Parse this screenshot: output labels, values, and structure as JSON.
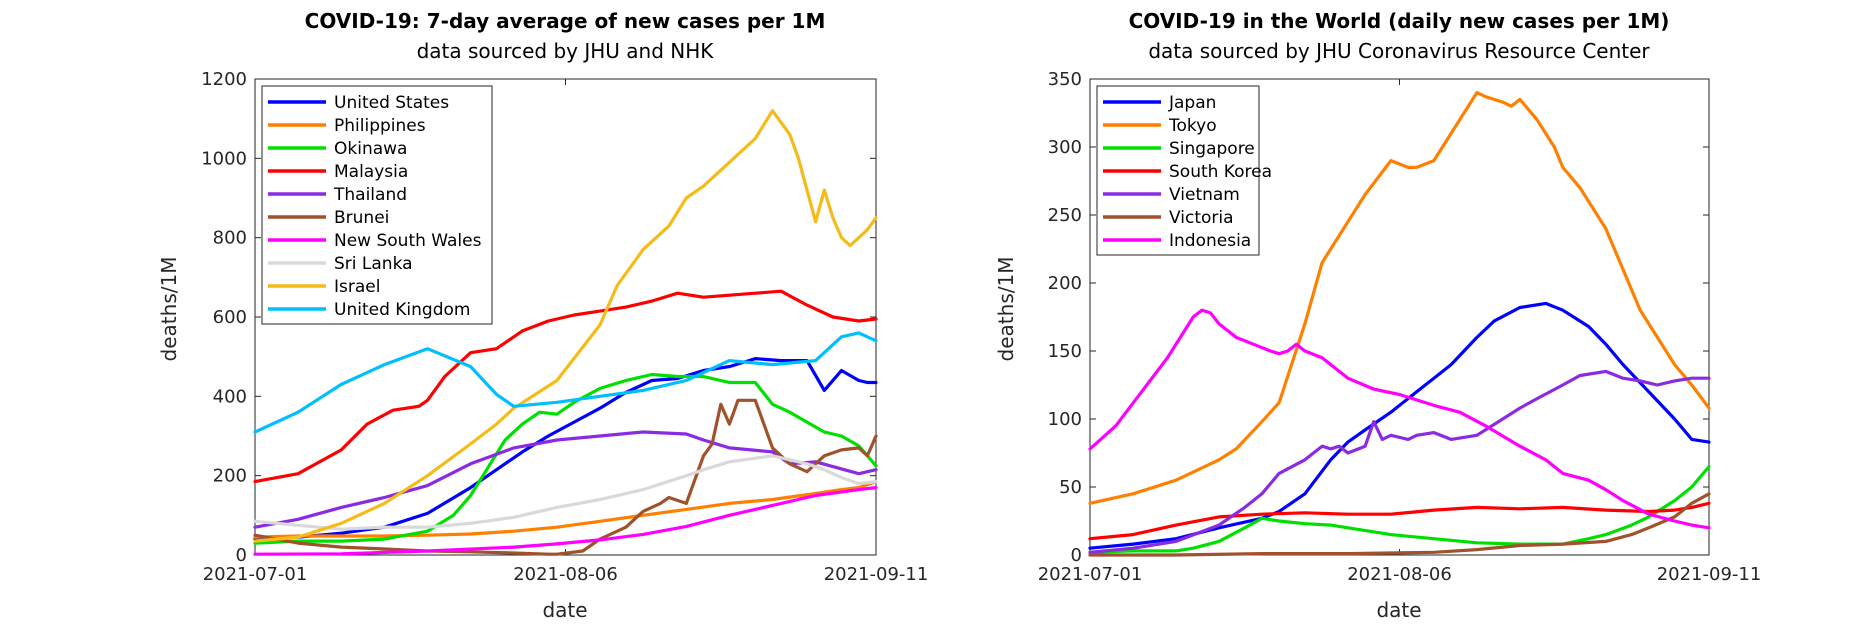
{
  "chart_data": [
    {
      "type": "line",
      "title": "COVID-19: 7-day average of new cases per 1M",
      "subtitle": "data sourced by JHU and NHK",
      "xlabel": "date",
      "ylabel": "deaths/1M",
      "x_range": [
        0,
        72
      ],
      "ylim": [
        0,
        1200
      ],
      "yticks": [
        0,
        200,
        400,
        600,
        800,
        1000,
        1200
      ],
      "xticks": [
        0,
        36,
        72
      ],
      "xtick_labels": [
        "2021-07-01",
        "2021-08-06",
        "2021-09-11"
      ],
      "legend_position": "top-left",
      "series": [
        {
          "name": "United States",
          "color": "#0000ff",
          "x": [
            0,
            5,
            10,
            15,
            20,
            25,
            28,
            31,
            34,
            37,
            40,
            43,
            46,
            49,
            52,
            55,
            58,
            61,
            64,
            66,
            68,
            70,
            71,
            72
          ],
          "y": [
            40,
            45,
            55,
            70,
            105,
            170,
            215,
            260,
            300,
            335,
            370,
            410,
            440,
            445,
            465,
            475,
            495,
            490,
            490,
            415,
            465,
            440,
            435,
            435
          ]
        },
        {
          "name": "Philippines",
          "color": "#ff8000",
          "x": [
            0,
            5,
            10,
            15,
            20,
            25,
            30,
            35,
            40,
            45,
            50,
            55,
            60,
            65,
            68,
            70,
            72
          ],
          "y": [
            45,
            48,
            48,
            48,
            50,
            53,
            60,
            70,
            85,
            100,
            115,
            130,
            140,
            155,
            165,
            170,
            185
          ]
        },
        {
          "name": "Okinawa",
          "color": "#00e000",
          "x": [
            0,
            5,
            10,
            15,
            20,
            23,
            25,
            27,
            29,
            31,
            33,
            35,
            37,
            40,
            43,
            46,
            49,
            52,
            55,
            58,
            60,
            62,
            64,
            66,
            68,
            70,
            71,
            72
          ],
          "y": [
            30,
            35,
            35,
            40,
            60,
            100,
            150,
            220,
            290,
            330,
            360,
            355,
            385,
            420,
            440,
            455,
            450,
            450,
            435,
            435,
            380,
            360,
            335,
            310,
            300,
            275,
            250,
            225
          ]
        },
        {
          "name": "Malaysia",
          "color": "#ff0000",
          "x": [
            0,
            5,
            10,
            13,
            16,
            19,
            20,
            22,
            25,
            28,
            31,
            34,
            37,
            40,
            43,
            46,
            49,
            52,
            55,
            58,
            61,
            64,
            67,
            70,
            72
          ],
          "y": [
            185,
            205,
            265,
            330,
            365,
            375,
            390,
            450,
            510,
            520,
            565,
            590,
            605,
            615,
            625,
            640,
            660,
            650,
            655,
            660,
            665,
            630,
            600,
            590,
            595
          ]
        },
        {
          "name": "Thailand",
          "color": "#8a2be2",
          "x": [
            0,
            5,
            10,
            15,
            20,
            25,
            30,
            35,
            40,
            45,
            50,
            52,
            55,
            60,
            62,
            65,
            70,
            72
          ],
          "y": [
            70,
            90,
            120,
            145,
            175,
            230,
            270,
            290,
            300,
            310,
            305,
            290,
            270,
            260,
            230,
            235,
            205,
            215
          ]
        },
        {
          "name": "Brunei",
          "color": "#a0522d",
          "x": [
            0,
            5,
            10,
            15,
            20,
            25,
            30,
            34,
            35,
            38,
            40,
            43,
            45,
            47,
            48,
            50,
            52,
            53,
            54,
            55,
            56,
            58,
            60,
            62,
            64,
            66,
            68,
            70,
            71,
            72
          ],
          "y": [
            50,
            30,
            20,
            15,
            10,
            8,
            5,
            2,
            2,
            10,
            40,
            70,
            110,
            130,
            145,
            130,
            250,
            280,
            380,
            330,
            390,
            390,
            270,
            230,
            210,
            250,
            265,
            270,
            250,
            300
          ]
        },
        {
          "name": "New South Wales",
          "color": "#ff00ff",
          "x": [
            0,
            10,
            20,
            30,
            35,
            40,
            45,
            50,
            55,
            60,
            65,
            70,
            72
          ],
          "y": [
            2,
            3,
            10,
            20,
            28,
            38,
            52,
            72,
            100,
            125,
            150,
            165,
            170
          ]
        },
        {
          "name": "Sri Lanka",
          "color": "#d9d9d9",
          "x": [
            0,
            5,
            10,
            15,
            20,
            25,
            30,
            35,
            40,
            45,
            50,
            52,
            55,
            60,
            62,
            64,
            66,
            68,
            70,
            72
          ],
          "y": [
            85,
            75,
            65,
            70,
            70,
            80,
            95,
            120,
            140,
            165,
            200,
            215,
            235,
            250,
            240,
            230,
            215,
            195,
            180,
            185
          ]
        },
        {
          "name": "Israel",
          "color": "#f5bb19",
          "x": [
            0,
            5,
            10,
            15,
            20,
            25,
            28,
            30,
            35,
            40,
            42,
            45,
            48,
            50,
            52,
            55,
            58,
            60,
            62,
            63,
            64,
            65,
            66,
            67,
            68,
            69,
            70,
            71,
            72
          ],
          "y": [
            35,
            45,
            80,
            130,
            200,
            280,
            330,
            370,
            440,
            580,
            680,
            770,
            830,
            900,
            930,
            990,
            1050,
            1120,
            1060,
            1000,
            920,
            840,
            920,
            850,
            800,
            780,
            800,
            820,
            850
          ]
        },
        {
          "name": "United Kingdom",
          "color": "#00bfff",
          "x": [
            0,
            5,
            10,
            15,
            20,
            25,
            28,
            30,
            35,
            40,
            45,
            50,
            55,
            60,
            65,
            68,
            70,
            72
          ],
          "y": [
            310,
            360,
            430,
            480,
            520,
            475,
            405,
            375,
            385,
            400,
            415,
            440,
            490,
            480,
            490,
            550,
            560,
            540
          ]
        }
      ]
    },
    {
      "type": "line",
      "title": "COVID-19 in the World (daily new cases per 1M)",
      "subtitle": "data sourced by JHU Coronavirus Resource Center",
      "xlabel": "date",
      "ylabel": "deaths/1M",
      "x_range": [
        0,
        72
      ],
      "ylim": [
        0,
        350
      ],
      "yticks": [
        0,
        50,
        100,
        150,
        200,
        250,
        300,
        350
      ],
      "xticks": [
        0,
        36,
        72
      ],
      "xtick_labels": [
        "2021-07-01",
        "2021-08-06",
        "2021-09-11"
      ],
      "legend_position": "top-left",
      "series": [
        {
          "name": "Japan",
          "color": "#0000ff",
          "x": [
            0,
            5,
            10,
            15,
            20,
            22,
            25,
            28,
            30,
            32,
            35,
            38,
            40,
            42,
            45,
            47,
            50,
            53,
            55,
            58,
            60,
            62,
            65,
            68,
            70,
            72
          ],
          "y": [
            5,
            8,
            12,
            20,
            27,
            32,
            45,
            70,
            83,
            92,
            105,
            120,
            130,
            140,
            160,
            172,
            182,
            185,
            180,
            168,
            155,
            140,
            120,
            100,
            85,
            83
          ]
        },
        {
          "name": "Tokyo",
          "color": "#ff8000",
          "x": [
            0,
            5,
            10,
            15,
            17,
            20,
            22,
            25,
            27,
            28,
            30,
            32,
            35,
            37,
            38,
            40,
            42,
            44,
            45,
            46,
            47,
            48,
            49,
            50,
            52,
            54,
            55,
            57,
            60,
            62,
            64,
            66,
            68,
            70,
            72
          ],
          "y": [
            38,
            45,
            55,
            70,
            78,
            98,
            112,
            170,
            215,
            225,
            245,
            265,
            290,
            285,
            285,
            290,
            310,
            330,
            340,
            337,
            335,
            333,
            330,
            335,
            320,
            300,
            285,
            270,
            240,
            210,
            180,
            160,
            140,
            125,
            108
          ]
        },
        {
          "name": "Singapore",
          "color": "#00e000",
          "x": [
            0,
            5,
            10,
            12,
            15,
            18,
            20,
            22,
            25,
            28,
            30,
            35,
            40,
            45,
            50,
            55,
            58,
            60,
            63,
            65,
            68,
            70,
            72
          ],
          "y": [
            2,
            3,
            3,
            5,
            10,
            20,
            27,
            25,
            23,
            22,
            20,
            15,
            12,
            9,
            8,
            8,
            12,
            15,
            22,
            28,
            40,
            50,
            65
          ]
        },
        {
          "name": "South Korea",
          "color": "#ff0000",
          "x": [
            0,
            5,
            10,
            15,
            20,
            25,
            30,
            35,
            40,
            45,
            50,
            55,
            60,
            65,
            68,
            70,
            72
          ],
          "y": [
            12,
            15,
            22,
            28,
            30,
            31,
            30,
            30,
            33,
            35,
            34,
            35,
            33,
            32,
            33,
            35,
            38
          ]
        },
        {
          "name": "Vietnam",
          "color": "#8a2be2",
          "x": [
            0,
            5,
            10,
            15,
            18,
            20,
            22,
            25,
            27,
            28,
            29,
            30,
            32,
            33,
            34,
            35,
            37,
            38,
            40,
            42,
            45,
            48,
            50,
            52,
            55,
            57,
            60,
            62,
            64,
            66,
            68,
            70,
            72
          ],
          "y": [
            2,
            5,
            10,
            22,
            35,
            45,
            60,
            70,
            80,
            78,
            80,
            75,
            80,
            98,
            85,
            88,
            85,
            88,
            90,
            85,
            88,
            100,
            108,
            115,
            125,
            132,
            135,
            130,
            128,
            125,
            128,
            130,
            130
          ]
        },
        {
          "name": "Victoria",
          "color": "#a0522d",
          "x": [
            0,
            10,
            20,
            30,
            40,
            45,
            50,
            55,
            60,
            63,
            65,
            68,
            70,
            72
          ],
          "y": [
            0,
            0,
            1,
            1,
            2,
            4,
            7,
            8,
            10,
            15,
            20,
            28,
            38,
            45
          ]
        },
        {
          "name": "Indonesia",
          "color": "#ff00ff",
          "x": [
            0,
            3,
            6,
            9,
            11,
            12,
            13,
            14,
            15,
            17,
            19,
            21,
            22,
            23,
            24,
            25,
            27,
            30,
            33,
            36,
            40,
            43,
            46,
            50,
            53,
            55,
            58,
            60,
            62,
            65,
            68,
            70,
            72
          ],
          "y": [
            78,
            95,
            120,
            145,
            165,
            175,
            180,
            178,
            170,
            160,
            155,
            150,
            148,
            150,
            155,
            150,
            145,
            130,
            122,
            118,
            110,
            105,
            95,
            80,
            70,
            60,
            55,
            48,
            40,
            30,
            25,
            22,
            20
          ]
        }
      ]
    }
  ]
}
